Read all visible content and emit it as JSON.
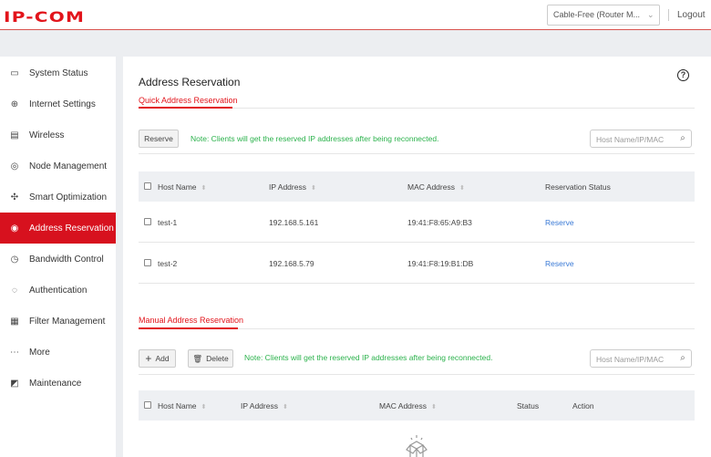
{
  "header": {
    "logo": "IP-COM",
    "mode_select": "Cable-Free (Router M...",
    "logout": "Logout"
  },
  "sidebar": {
    "items": [
      {
        "label": "System Status",
        "icon": "monitor-icon",
        "glyph": "▭"
      },
      {
        "label": "Internet Settings",
        "icon": "globe-icon",
        "glyph": "⊕"
      },
      {
        "label": "Wireless",
        "icon": "wireless-icon",
        "glyph": "▤"
      },
      {
        "label": "Node Management",
        "icon": "node-icon",
        "glyph": "◎"
      },
      {
        "label": "Smart Optimization",
        "icon": "optimization-icon",
        "glyph": "✣"
      },
      {
        "label": "Address Reservation",
        "icon": "address-icon",
        "glyph": "◉",
        "active": true
      },
      {
        "label": "Bandwidth Control",
        "icon": "bandwidth-icon",
        "glyph": "◷"
      },
      {
        "label": "Authentication",
        "icon": "authentication-icon",
        "glyph": "◌"
      },
      {
        "label": "Filter Management",
        "icon": "filter-icon",
        "glyph": "▦"
      },
      {
        "label": "More",
        "icon": "more-icon",
        "glyph": "⋯"
      },
      {
        "label": "Maintenance",
        "icon": "maintenance-icon",
        "glyph": "◩"
      }
    ]
  },
  "main": {
    "title": "Address Reservation",
    "help_icon": "help-icon",
    "quick": {
      "tab": "Quick Address Reservation",
      "reserve_button": "Reserve",
      "note": "Note: Clients will get the reserved IP addresses after being reconnected.",
      "search_placeholder": "Host Name/IP/MAC",
      "columns": [
        "Host Name",
        "IP Address",
        "MAC Address",
        "Reservation Status"
      ],
      "rows": [
        {
          "host": "test-1",
          "ip": "192.168.5.161",
          "mac": "19:41:F8:65:A9:B3",
          "status": "Reserve"
        },
        {
          "host": "test-2",
          "ip": "192.168.5.79",
          "mac": "19:41:F8:19:B1:DB",
          "status": "Reserve"
        }
      ]
    },
    "manual": {
      "tab": "Manual Address Reservation",
      "add_button": "Add",
      "delete_button": "Delete",
      "note": "Note: Clients will get the reserved IP addresses after being reconnected.",
      "search_placeholder": "Host Name/IP/MAC",
      "columns": [
        "Host Name",
        "IP Address",
        "MAC Address",
        "Status",
        "Action"
      ],
      "empty_icon": "empty-box-icon"
    }
  },
  "colors": {
    "accent": "#d7111e",
    "note": "#2bb24c",
    "link": "#3a7ad6"
  }
}
